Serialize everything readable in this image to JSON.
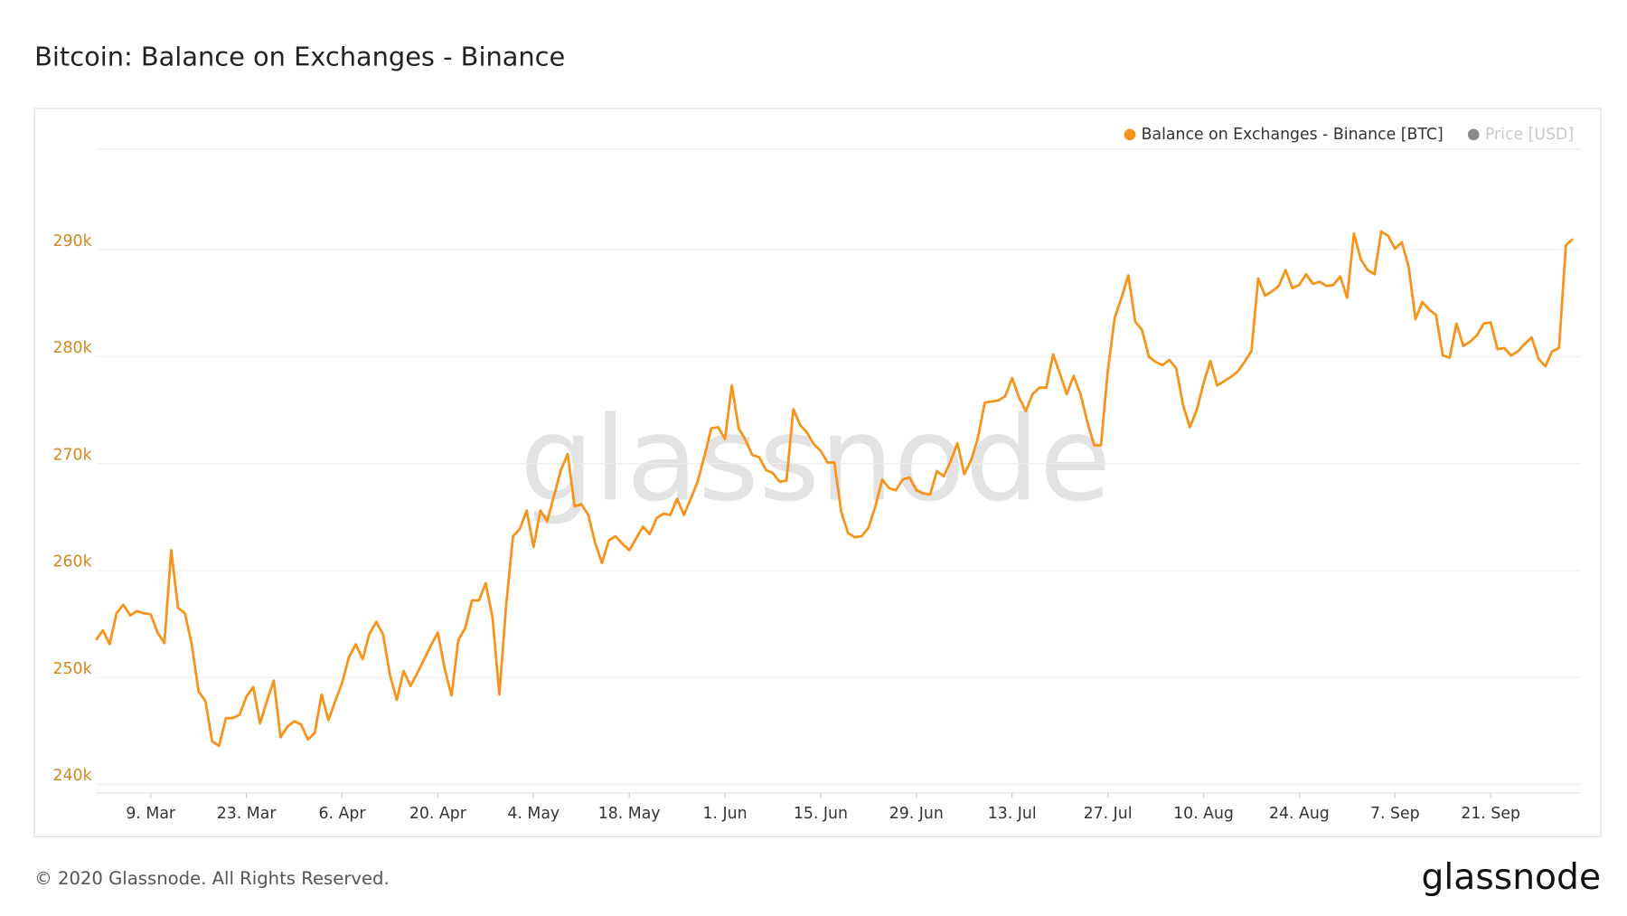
{
  "chart_data": {
    "type": "line",
    "title": "Bitcoin: Balance on Exchanges - Binance",
    "categories": [
      null,
      null,
      null,
      null,
      null,
      null,
      null,
      null,
      "9. Mar",
      null,
      null,
      null,
      null,
      null,
      null,
      null,
      null,
      null,
      null,
      null,
      null,
      null,
      "23. Mar",
      null,
      null,
      null,
      null,
      null,
      null,
      null,
      null,
      null,
      null,
      null,
      null,
      null,
      "6. Apr",
      null,
      null,
      null,
      null,
      null,
      null,
      null,
      null,
      null,
      null,
      null,
      null,
      null,
      "20. Apr",
      null,
      null,
      null,
      null,
      null,
      null,
      null,
      null,
      null,
      null,
      null,
      null,
      null,
      "4. May",
      null,
      null,
      null,
      null,
      null,
      null,
      null,
      null,
      null,
      null,
      null,
      null,
      null,
      "18. May",
      null,
      null,
      null,
      null,
      null,
      null,
      null,
      null,
      null,
      null,
      null,
      null,
      null,
      "1. Jun",
      null,
      null,
      null,
      null,
      null,
      null,
      null,
      null,
      null,
      null,
      null,
      null,
      null,
      "15. Jun",
      null,
      null,
      null,
      null,
      null,
      null,
      null,
      null,
      null,
      null,
      null,
      null,
      null,
      "29. Jun",
      null,
      null,
      null,
      null,
      null,
      null,
      null,
      null,
      null,
      null,
      null,
      null,
      null,
      "13. Jul",
      null,
      null,
      null,
      null,
      null,
      null,
      null,
      null,
      null,
      null,
      null,
      null,
      null,
      "27. Jul",
      null,
      null,
      null,
      null,
      null,
      null,
      null,
      null,
      null,
      null,
      null,
      null,
      null,
      "10. Aug",
      null,
      null,
      null,
      null,
      null,
      null,
      null,
      null,
      null,
      null,
      null,
      null,
      null,
      "24. Aug",
      null,
      null,
      null,
      null,
      null,
      null,
      null,
      null,
      null,
      null,
      null,
      null,
      null,
      "7. Sep",
      null,
      null,
      null,
      null,
      null,
      null,
      null,
      null,
      null,
      null,
      null,
      null,
      null,
      "21. Sep",
      null,
      null,
      null,
      null,
      null,
      null,
      null,
      null,
      null,
      null,
      null,
      null
    ],
    "series": [
      {
        "name": "Balance on Exchanges - Binance [BTC]",
        "color": "#f7931a",
        "values": [
          253500,
          254400,
          253100,
          256000,
          256800,
          255800,
          256200,
          256000,
          255900,
          254200,
          253200,
          261900,
          256500,
          256000,
          253100,
          248700,
          247800,
          244000,
          243600,
          246200,
          246200,
          246500,
          248200,
          249100,
          245700,
          247800,
          249700,
          244400,
          245400,
          245900,
          245600,
          244200,
          244800,
          248400,
          246000,
          247800,
          249500,
          251900,
          253100,
          251700,
          254100,
          255200,
          254000,
          250200,
          247900,
          250600,
          249200,
          250400,
          251700,
          253000,
          254200,
          250800,
          248300,
          253500,
          254600,
          257200,
          257200,
          258800,
          255600,
          248400,
          256800,
          263200,
          263900,
          265600,
          262200,
          265600,
          264600,
          267000,
          269400,
          270900,
          266000,
          266200,
          265200,
          262600,
          260700,
          262800,
          263200,
          262500,
          261900,
          263000,
          264100,
          263400,
          264900,
          265300,
          265200,
          266700,
          265200,
          266700,
          268300,
          270700,
          273300,
          273400,
          272300,
          277300,
          273300,
          272200,
          270800,
          270600,
          269400,
          269100,
          268300,
          268400,
          275100,
          273600,
          272900,
          271800,
          271200,
          270100,
          270100,
          265500,
          263500,
          263100,
          263200,
          264000,
          266000,
          268500,
          267700,
          267500,
          268500,
          268700,
          267500,
          267200,
          267100,
          269300,
          268800,
          270200,
          271900,
          269000,
          270300,
          272400,
          275700,
          275800,
          275900,
          276300,
          278000,
          276200,
          274900,
          276500,
          277100,
          277100,
          280200,
          278400,
          276500,
          278200,
          276500,
          273900,
          271700,
          271700,
          278700,
          283600,
          285500,
          287600,
          283300,
          282500,
          280000,
          279500,
          279200,
          279700,
          278900,
          275500,
          273400,
          275000,
          277500,
          279600,
          277300,
          277700,
          278100,
          278600,
          279500,
          280500,
          287300,
          285700,
          286100,
          286600,
          288100,
          286400,
          286700,
          287700,
          286800,
          287000,
          286600,
          286700,
          287500,
          285500,
          291500,
          289100,
          288100,
          287700,
          291700,
          291300,
          290100,
          290700,
          288400,
          283500,
          285100,
          284400,
          283900,
          280100,
          279900,
          283100,
          281000,
          281400,
          282000,
          283100,
          283200,
          280700,
          280800,
          280100,
          280500,
          281200,
          281800,
          279800,
          279100,
          280500,
          280800,
          290400,
          291000
        ]
      }
    ],
    "inactive_legend": [
      {
        "name": "Price [USD]",
        "color": "#8a8a8a"
      }
    ],
    "ylim": [
      239200,
      299400
    ],
    "yticks": [
      {
        "value": 240000,
        "label": "240k"
      },
      {
        "value": 250000,
        "label": "250k"
      },
      {
        "value": 260000,
        "label": "260k"
      },
      {
        "value": 270000,
        "label": "270k"
      },
      {
        "value": 280000,
        "label": "280k"
      },
      {
        "value": 290000,
        "label": "290k"
      }
    ],
    "grid": true,
    "legend": "top-right",
    "watermark": "glassnode"
  },
  "footer": {
    "copyright": "© 2020 Glassnode. All Rights Reserved.",
    "logo": "glassnode"
  }
}
